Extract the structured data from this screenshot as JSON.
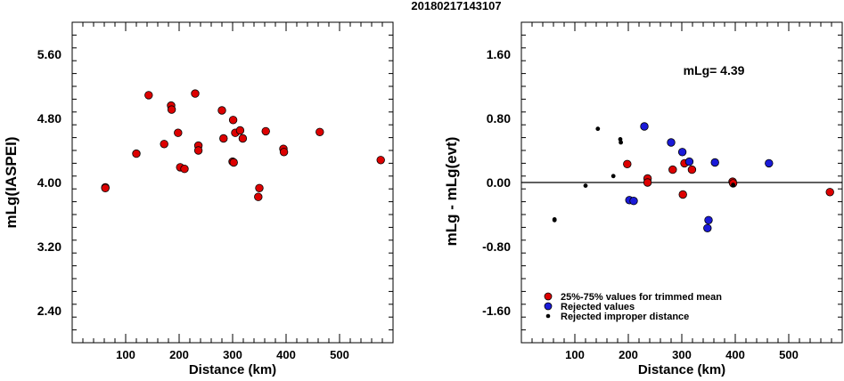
{
  "page_title": "20180217143107",
  "chart_data": [
    {
      "type": "scatter",
      "xlabel": "Distance (km)",
      "ylabel": "mLg(IASPEI)",
      "xlim": [
        0,
        600
      ],
      "ylim": [
        2.0,
        6.0
      ],
      "x_ticks": [
        "100",
        "200",
        "300",
        "400",
        "500"
      ],
      "y_ticks": [
        "2.40",
        "3.20",
        "4.00",
        "4.80",
        "5.60"
      ],
      "series": [
        {
          "color": "#dd0000",
          "points": [
            [
              62,
              3.94
            ],
            [
              62,
              3.93
            ],
            [
              120,
              4.36
            ],
            [
              143,
              5.09
            ],
            [
              172,
              4.48
            ],
            [
              185,
              4.96
            ],
            [
              186,
              4.91
            ],
            [
              198,
              4.62
            ],
            [
              202,
              4.19
            ],
            [
              210,
              4.17
            ],
            [
              230,
              5.11
            ],
            [
              236,
              4.46
            ],
            [
              236,
              4.4
            ],
            [
              280,
              4.9
            ],
            [
              283,
              4.55
            ],
            [
              300,
              4.26
            ],
            [
              301,
              4.78
            ],
            [
              302,
              4.25
            ],
            [
              305,
              4.62
            ],
            [
              314,
              4.65
            ],
            [
              319,
              4.55
            ],
            [
              348,
              3.82
            ],
            [
              350,
              3.93
            ],
            [
              362,
              4.64
            ],
            [
              395,
              4.42
            ],
            [
              396,
              4.38
            ],
            [
              463,
              4.63
            ],
            [
              577,
              4.28
            ]
          ]
        }
      ]
    },
    {
      "type": "scatter",
      "xlabel": "Distance (km)",
      "ylabel": "mLg - mLg(evt)",
      "xlim": [
        0,
        600
      ],
      "ylim": [
        -2.0,
        2.0
      ],
      "x_ticks": [
        "100",
        "200",
        "300",
        "400",
        "500"
      ],
      "y_ticks": [
        "-1.60",
        "-0.80",
        "0.00",
        "0.80",
        "1.60"
      ],
      "annotation": "mLg=  4.39",
      "hline": 0.0,
      "legend": {
        "placement": "bottom-left",
        "entries": [
          {
            "label": "25%-75% values for trimmed mean",
            "color": "#dd0000",
            "marker": "large"
          },
          {
            "label": "Rejected values",
            "color": "#1a1ad8",
            "marker": "large"
          },
          {
            "label": "Rejected improper distance",
            "color": "#000000",
            "marker": "small"
          }
        ]
      },
      "series": [
        {
          "name": "25%-75% values for trimmed mean",
          "color": "#dd0000",
          "marker": "large",
          "points": [
            [
              198,
              0.23
            ],
            [
              236,
              0.05
            ],
            [
              236,
              0.0
            ],
            [
              283,
              0.16
            ],
            [
              302,
              -0.15
            ],
            [
              305,
              0.24
            ],
            [
              319,
              0.16
            ],
            [
              395,
              0.01
            ],
            [
              396,
              -0.01
            ],
            [
              577,
              -0.12
            ]
          ]
        },
        {
          "name": "Rejected values",
          "color": "#1a1ad8",
          "marker": "large",
          "points": [
            [
              202,
              -0.22
            ],
            [
              210,
              -0.23
            ],
            [
              230,
              0.7
            ],
            [
              280,
              0.5
            ],
            [
              301,
              0.38
            ],
            [
              314,
              0.26
            ],
            [
              348,
              -0.57
            ],
            [
              350,
              -0.47
            ],
            [
              362,
              0.25
            ],
            [
              463,
              0.24
            ]
          ]
        },
        {
          "name": "Rejected improper distance",
          "color": "#000000",
          "marker": "small",
          "points": [
            [
              62,
              -0.46
            ],
            [
              62,
              -0.47
            ],
            [
              120,
              -0.04
            ],
            [
              143,
              0.67
            ],
            [
              172,
              0.08
            ],
            [
              185,
              0.54
            ],
            [
              186,
              0.5
            ],
            [
              396,
              -0.03
            ]
          ]
        }
      ]
    }
  ]
}
